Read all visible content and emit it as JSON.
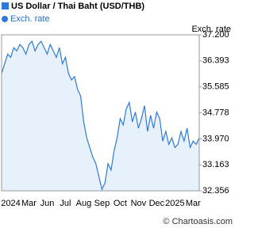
{
  "chart_data": {
    "type": "area",
    "title": "US Dollar / Thai Baht (USD/THB)",
    "y_label": "Exch. rate",
    "legend_label": "Exch. rate",
    "source": "© Chartoasis.com",
    "color": "#2f7ad8",
    "fill": "#e7f1fb",
    "categories": [
      null,
      null,
      null,
      "2024",
      null,
      null,
      null,
      null,
      null,
      "Mar",
      null,
      null,
      null,
      null,
      null,
      "Jun",
      null,
      null,
      null,
      null,
      null,
      "Jul",
      null,
      null,
      null,
      null,
      null,
      "Aug",
      null,
      null,
      null,
      null,
      null,
      "Sep",
      null,
      null,
      null,
      null,
      null,
      "Oct",
      null,
      null,
      null,
      null,
      null,
      "Nov",
      null,
      null,
      null,
      null,
      null,
      "Dec",
      null,
      null,
      null,
      null,
      null,
      "2025",
      null,
      null,
      null,
      null,
      null,
      "Mar",
      null,
      null
    ],
    "values": [
      36.0,
      36.3,
      36.6,
      36.5,
      36.8,
      36.7,
      36.9,
      36.8,
      36.6,
      36.9,
      37.0,
      36.7,
      36.9,
      37.0,
      36.8,
      36.6,
      36.9,
      36.7,
      36.5,
      36.8,
      36.3,
      36.5,
      36.0,
      35.8,
      35.9,
      35.5,
      35.3,
      34.5,
      34.0,
      33.7,
      33.4,
      33.2,
      32.8,
      32.4,
      32.6,
      33.2,
      33.0,
      33.6,
      34.0,
      34.6,
      34.4,
      34.9,
      35.1,
      34.5,
      34.8,
      34.3,
      34.6,
      35.0,
      34.2,
      34.7,
      34.3,
      34.8,
      34.6,
      33.9,
      34.2,
      33.8,
      34.0,
      33.7,
      33.8,
      34.2,
      33.9,
      34.3,
      33.7,
      33.9,
      33.8,
      34.0
    ],
    "ylim": [
      32.356,
      37.2
    ],
    "yticks": [
      32.356,
      33.163,
      {
        "value": 33.97,
        "label": "33.970"
      },
      34.778,
      35.585,
      36.393,
      {
        "value": 37.2,
        "label": "37.200"
      }
    ],
    "grid": false
  }
}
